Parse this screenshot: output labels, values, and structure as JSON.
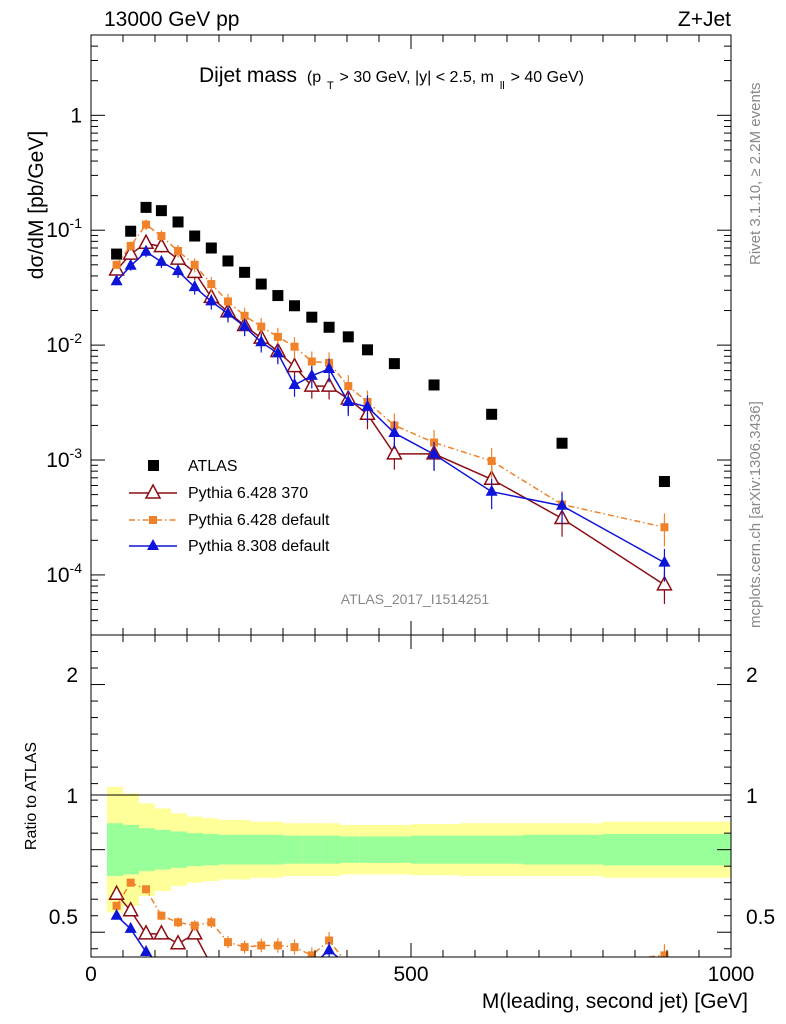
{
  "header": {
    "energy": "13000 GeV pp",
    "process": "Z+Jet"
  },
  "side": {
    "rivet": "Rivet 3.1.10, ≥ 2.2M events",
    "mcplots": "mcplots.cern.ch [arXiv:1306.3436]"
  },
  "chart_data": {
    "type": "scatter",
    "title_main": "Dijet mass",
    "title_cut_1": "(p",
    "title_cut_sub_1": "T",
    "title_cut_2": " > 30 GeV, |y| < 2.5, m",
    "title_cut_sub_2": "ll",
    "title_cut_3": " > 40 GeV)",
    "analysis_id": "ATLAS_2017_I1514251",
    "xlabel": "M(leading, second jet) [GeV]",
    "ylabel_main": "dσ/dM [pb/GeV]",
    "ylabel_ratio": "Ratio to ATLAS",
    "xlim": [
      0,
      1000
    ],
    "ylim_main": [
      3e-05,
      5
    ],
    "ylog": true,
    "ylim_ratio": [
      0.35,
      2.3
    ],
    "x_ticks": [
      "0",
      "500",
      "1000"
    ],
    "y_ticks_main": [
      "1",
      "10⁻¹",
      "10⁻²",
      "10⁻³",
      "10⁻⁴"
    ],
    "y_ticks_ratio": [
      "0.5",
      "1",
      "2"
    ],
    "legend_position": "lower-left",
    "x": [
      40,
      62,
      86,
      110,
      136,
      162,
      188,
      214,
      240,
      266,
      292,
      318,
      345,
      372,
      402,
      432,
      474,
      536,
      626,
      736,
      896
    ],
    "series": [
      {
        "name": "ATLAS",
        "color": "#000000",
        "marker": "square",
        "values": [
          0.062,
          0.098,
          0.158,
          0.148,
          0.118,
          0.089,
          0.07,
          0.054,
          0.043,
          0.034,
          0.027,
          0.022,
          0.0175,
          0.0143,
          0.0118,
          0.0091,
          0.0069,
          0.0045,
          0.0025,
          0.0014,
          0.00065
        ]
      },
      {
        "name": "Pythia 6.428 370",
        "color": "#8b0d14",
        "marker": "open-triangle",
        "values": [
          0.045,
          0.062,
          0.077,
          0.072,
          0.056,
          0.043,
          0.026,
          0.0195,
          0.0148,
          0.0115,
          0.0088,
          0.0065,
          0.0044,
          0.0044,
          0.0034,
          0.0025,
          0.00113,
          0.00113,
          0.00068,
          0.00031,
          8.2e-05
        ],
        "ratio": [
          0.73,
          0.63,
          0.49,
          0.49,
          0.43,
          0.49,
          0.3,
          0.3,
          0.3,
          0.3,
          0.3,
          0.3,
          0.3,
          0.3,
          0.3,
          0.3,
          0.3,
          0.3,
          0.3,
          0.3,
          0.3
        ]
      },
      {
        "name": "Pythia 6.428 default",
        "color": "#f0822a",
        "marker": "filled-square",
        "values": [
          0.05,
          0.073,
          0.112,
          0.089,
          0.066,
          0.05,
          0.034,
          0.024,
          0.018,
          0.0145,
          0.0118,
          0.0097,
          0.0072,
          0.007,
          0.0044,
          0.0032,
          0.002,
          0.00142,
          0.00098,
          0.00041,
          0.00026
        ],
        "ratio": [
          0.66,
          0.8,
          0.76,
          0.6,
          0.56,
          0.54,
          0.56,
          0.44,
          0.41,
          0.42,
          0.42,
          0.41,
          0.36,
          0.45,
          0.3,
          0.3,
          0.3,
          0.3,
          0.3,
          0.3,
          0.36
        ]
      },
      {
        "name": "Pythia 8.308 default",
        "color": "#0e14d8",
        "marker": "filled-triangle",
        "values": [
          0.036,
          0.049,
          0.065,
          0.053,
          0.044,
          0.032,
          0.024,
          0.0188,
          0.0145,
          0.0106,
          0.0085,
          0.0045,
          0.0054,
          0.0062,
          0.0032,
          0.0029,
          0.00172,
          0.00112,
          0.00053,
          0.0004,
          0.000128
        ],
        "ratio": [
          0.6,
          0.52,
          0.38,
          0.3,
          0.3,
          0.3,
          0.3,
          0.3,
          0.3,
          0.3,
          0.3,
          0.3,
          0.3,
          0.39,
          0.3,
          0.3,
          0.3,
          0.3,
          0.3,
          0.3,
          0.3
        ]
      }
    ],
    "band_x_edges": [
      25,
      50,
      75,
      100,
      125,
      150,
      175,
      200,
      225,
      250,
      275,
      300,
      330,
      360,
      390,
      420,
      450,
      500,
      575,
      675,
      800,
      1000
    ],
    "band_inner_halfwidth": [
      0.16,
      0.15,
      0.13,
      0.12,
      0.11,
      0.1,
      0.095,
      0.09,
      0.09,
      0.09,
      0.09,
      0.085,
      0.085,
      0.085,
      0.08,
      0.08,
      0.08,
      0.085,
      0.085,
      0.09,
      0.095
    ],
    "band_outer_halfwidth": [
      0.38,
      0.34,
      0.28,
      0.25,
      0.22,
      0.2,
      0.19,
      0.18,
      0.18,
      0.17,
      0.17,
      0.16,
      0.16,
      0.16,
      0.15,
      0.15,
      0.15,
      0.155,
      0.16,
      0.16,
      0.17
    ]
  }
}
